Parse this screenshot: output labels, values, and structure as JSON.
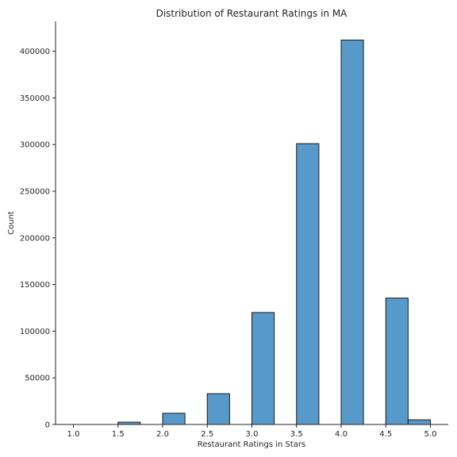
{
  "chart_data": {
    "type": "bar",
    "title": "Distribution of Restaurant Ratings in MA",
    "xlabel": "Restaurant Ratings in Stars",
    "ylabel": "Count",
    "xlim": [
      0.8,
      5.2
    ],
    "ylim": [
      0,
      432000
    ],
    "grid": false,
    "x_ticks": [
      1.0,
      1.5,
      2.0,
      2.5,
      3.0,
      3.5,
      4.0,
      4.5,
      5.0
    ],
    "x_tick_labels": [
      "1.0",
      "1.5",
      "2.0",
      "2.5",
      "3.0",
      "3.5",
      "4.0",
      "4.5",
      "5.0"
    ],
    "y_ticks": [
      0,
      50000,
      100000,
      150000,
      200000,
      250000,
      300000,
      350000,
      400000
    ],
    "y_tick_labels": [
      "0",
      "50000",
      "100000",
      "150000",
      "200000",
      "250000",
      "300000",
      "350000",
      "400000"
    ],
    "bar_color": "#5799c9",
    "bars": [
      {
        "x_start": 1.5,
        "x_end": 1.75,
        "value": 2500
      },
      {
        "x_start": 2.0,
        "x_end": 2.25,
        "value": 12000
      },
      {
        "x_start": 2.5,
        "x_end": 2.75,
        "value": 33000
      },
      {
        "x_start": 3.0,
        "x_end": 3.25,
        "value": 120000
      },
      {
        "x_start": 3.5,
        "x_end": 3.75,
        "value": 301000
      },
      {
        "x_start": 4.0,
        "x_end": 4.25,
        "value": 412000
      },
      {
        "x_start": 4.5,
        "x_end": 4.75,
        "value": 135500
      },
      {
        "x_start": 4.75,
        "x_end": 5.0,
        "value": 5000
      }
    ]
  }
}
